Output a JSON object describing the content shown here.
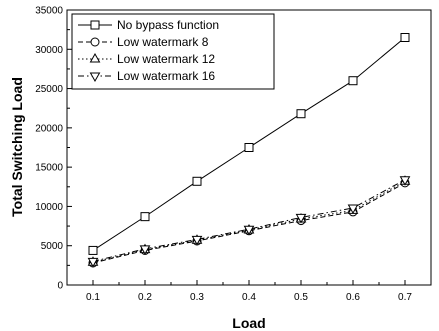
{
  "chart_data": {
    "type": "line",
    "title": "",
    "xlabel": "Load",
    "ylabel": "Total Switching Load",
    "x": [
      0.1,
      0.2,
      0.3,
      0.4,
      0.5,
      0.6,
      0.7
    ],
    "xticks": [
      "0.1",
      "0.2",
      "0.3",
      "0.4",
      "0.5",
      "0.6",
      "0.7"
    ],
    "xlim": [
      0.05,
      0.75
    ],
    "yticks": [
      0,
      5000,
      10000,
      15000,
      20000,
      25000,
      30000,
      35000
    ],
    "ylim": [
      0,
      35000
    ],
    "grid": false,
    "legend_position": "top-left",
    "series": [
      {
        "name": "No bypass function",
        "marker": "square",
        "line": "solid",
        "values": [
          4400,
          8700,
          13200,
          17500,
          21800,
          26000,
          31500
        ]
      },
      {
        "name": "Low watermark 8",
        "marker": "circle",
        "line": "dashed",
        "values": [
          2800,
          4400,
          5600,
          6900,
          8200,
          9300,
          13000
        ]
      },
      {
        "name": "Low watermark 12",
        "marker": "triangle-up",
        "line": "dotted",
        "values": [
          2900,
          4500,
          5700,
          7000,
          8400,
          9500,
          13200
        ]
      },
      {
        "name": "Low watermark 16",
        "marker": "triangle-down",
        "line": "dashdot",
        "values": [
          3000,
          4600,
          5800,
          7100,
          8600,
          9800,
          13400
        ]
      }
    ]
  }
}
